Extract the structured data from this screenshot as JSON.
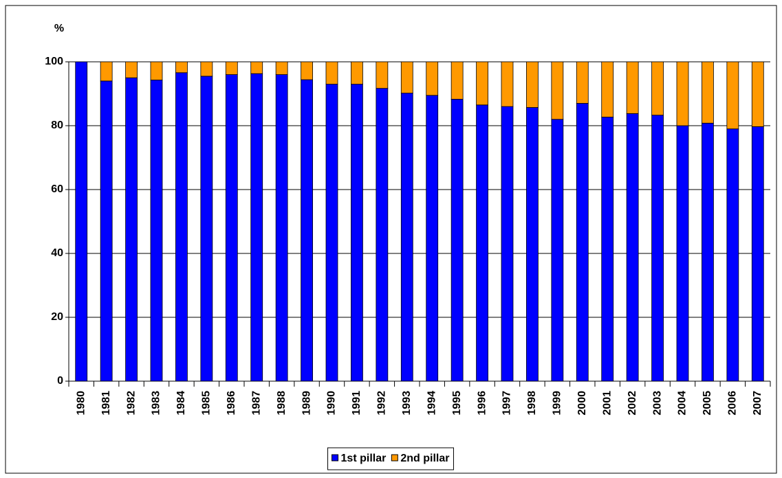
{
  "chart_data": {
    "type": "stacked_bar",
    "y_label": "%",
    "categories": [
      "1980",
      "1981",
      "1982",
      "1983",
      "1984",
      "1985",
      "1986",
      "1987",
      "1988",
      "1989",
      "1990",
      "1991",
      "1992",
      "1993",
      "1994",
      "1995",
      "1996",
      "1997",
      "1998",
      "1999",
      "2000",
      "2001",
      "2002",
      "2003",
      "2004",
      "2005",
      "2006",
      "2007"
    ],
    "series": [
      {
        "name": "1st pillar",
        "color": "#0000ff",
        "values": [
          100,
          94,
          95,
          94.3,
          96.6,
          95.5,
          96,
          96.3,
          96,
          94.4,
          93,
          93,
          91.7,
          90.2,
          89.5,
          88.3,
          86.5,
          86,
          85.7,
          82,
          87,
          82.7,
          83.8,
          83.3,
          80,
          80.8,
          79,
          79.7
        ]
      },
      {
        "name": "2nd pillar",
        "color": "#ff9900",
        "values": [
          0,
          6,
          5,
          5.7,
          3.4,
          4.5,
          4,
          3.7,
          4,
          5.6,
          7,
          7,
          8.3,
          9.8,
          10.5,
          11.7,
          13.5,
          14,
          14.3,
          18,
          13,
          17.3,
          16.2,
          16.7,
          20,
          19.2,
          21,
          20.3
        ]
      }
    ],
    "ylim": [
      0,
      100
    ],
    "yticks": [
      0,
      20,
      40,
      60,
      80,
      100
    ],
    "grid": true,
    "legend": "bottom"
  }
}
